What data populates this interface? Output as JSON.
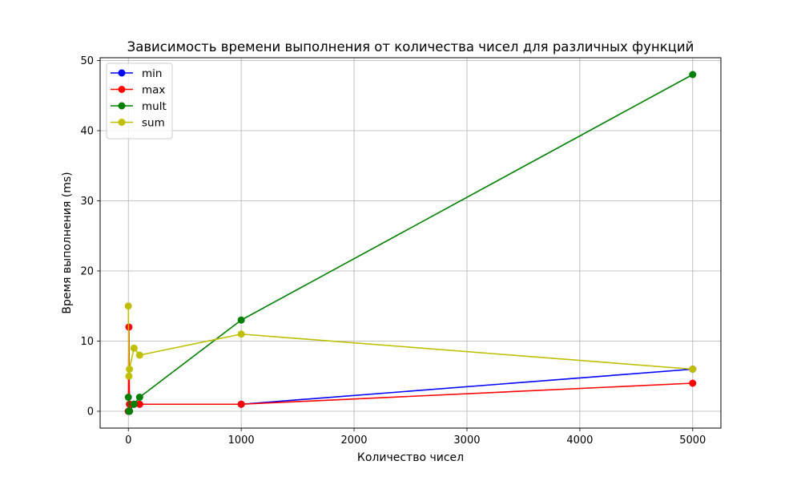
{
  "chart_data": {
    "type": "line",
    "title": "Зависимость времени выполнения от количества чисел для различных функций",
    "xlabel": "Количество чисел",
    "ylabel": "Время выполнения (ms)",
    "xlim": [
      -250,
      5250
    ],
    "ylim": [
      -2.4,
      50.4
    ],
    "xticks": [
      0,
      1000,
      2000,
      3000,
      4000,
      5000
    ],
    "yticks": [
      0,
      10,
      20,
      30,
      40,
      50
    ],
    "grid": true,
    "legend_position": "top-left",
    "series": [
      {
        "name": "min",
        "color": "#0000ff",
        "marker": "circle",
        "x": [
          0,
          5,
          10,
          50,
          100,
          1000,
          5000
        ],
        "y": [
          0,
          0,
          0,
          1,
          1,
          1,
          6
        ]
      },
      {
        "name": "max",
        "color": "#ff0000",
        "marker": "circle",
        "x": [
          0,
          5,
          10,
          50,
          100,
          1000,
          5000
        ],
        "y": [
          0,
          12,
          1,
          1,
          1,
          1,
          4
        ]
      },
      {
        "name": "mult",
        "color": "#008000",
        "marker": "circle",
        "x": [
          0,
          5,
          10,
          50,
          100,
          1000,
          5000
        ],
        "y": [
          2,
          0,
          0,
          1,
          2,
          13,
          48
        ]
      },
      {
        "name": "sum",
        "color": "#bfbf00",
        "marker": "circle",
        "x": [
          0,
          5,
          10,
          50,
          100,
          1000,
          5000
        ],
        "y": [
          15,
          5,
          6,
          9,
          8,
          11,
          6
        ]
      }
    ]
  }
}
